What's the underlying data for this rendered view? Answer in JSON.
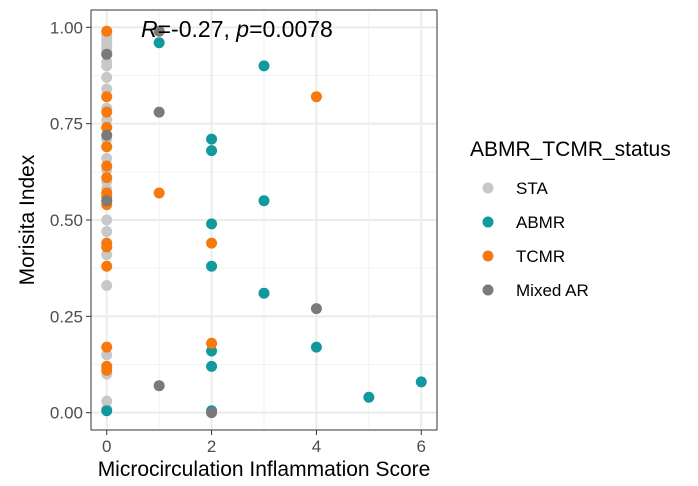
{
  "chart_data": {
    "type": "scatter",
    "xlabel": "Microcirculation Inflammation Score",
    "ylabel": "Morisita Index",
    "xlim": [
      -0.3,
      6.3
    ],
    "ylim": [
      -0.045,
      1.045
    ],
    "x_ticks": [
      "0",
      "2",
      "4",
      "6"
    ],
    "y_ticks": [
      "0.00",
      "0.25",
      "0.50",
      "0.75",
      "1.00"
    ],
    "grid": true,
    "annotation": {
      "r_label": "R",
      "r_value": "=-0.27, ",
      "p_label": "p",
      "p_value": "=0.0078"
    },
    "legend": {
      "title": "ABMR_TCMR_status",
      "position": "right"
    },
    "series": [
      {
        "name": "STA",
        "color": "#C8C8C8",
        "points": [
          [
            0,
            0.98
          ],
          [
            0,
            0.97
          ],
          [
            0,
            0.96
          ],
          [
            0,
            0.95
          ],
          [
            0,
            0.94
          ],
          [
            0,
            0.93
          ],
          [
            0,
            0.91
          ],
          [
            0,
            0.9
          ],
          [
            0,
            0.87
          ],
          [
            0,
            0.84
          ],
          [
            0,
            0.79
          ],
          [
            0,
            0.76
          ],
          [
            0,
            0.74
          ],
          [
            0,
            0.71
          ],
          [
            0,
            0.69
          ],
          [
            0,
            0.66
          ],
          [
            0,
            0.63
          ],
          [
            0,
            0.6
          ],
          [
            0,
            0.58
          ],
          [
            0,
            0.55
          ],
          [
            0,
            0.5
          ],
          [
            0,
            0.47
          ],
          [
            0,
            0.43
          ],
          [
            0,
            0.41
          ],
          [
            0,
            0.33
          ],
          [
            0,
            0.15
          ],
          [
            0,
            0.12
          ],
          [
            0,
            0.1
          ],
          [
            0,
            0.03
          ],
          [
            0,
            0.01
          ],
          [
            2,
            0.0
          ]
        ]
      },
      {
        "name": "ABMR",
        "color": "#12999E",
        "points": [
          [
            0,
            0.005
          ],
          [
            1,
            0.96
          ],
          [
            2,
            0.71
          ],
          [
            2,
            0.68
          ],
          [
            2,
            0.49
          ],
          [
            2,
            0.38
          ],
          [
            2,
            0.16
          ],
          [
            2,
            0.12
          ],
          [
            2,
            0.005
          ],
          [
            3,
            0.9
          ],
          [
            3,
            0.55
          ],
          [
            3,
            0.31
          ],
          [
            4,
            0.17
          ],
          [
            5,
            0.04
          ],
          [
            6,
            0.08
          ]
        ]
      },
      {
        "name": "TCMR",
        "color": "#F7780C",
        "points": [
          [
            0,
            0.99
          ],
          [
            0,
            0.82
          ],
          [
            0,
            0.78
          ],
          [
            0,
            0.74
          ],
          [
            0,
            0.69
          ],
          [
            0,
            0.64
          ],
          [
            0,
            0.61
          ],
          [
            0,
            0.57
          ],
          [
            0,
            0.56
          ],
          [
            0,
            0.54
          ],
          [
            0,
            0.44
          ],
          [
            0,
            0.43
          ],
          [
            0,
            0.38
          ],
          [
            0,
            0.17
          ],
          [
            0,
            0.12
          ],
          [
            0,
            0.11
          ],
          [
            1,
            0.57
          ],
          [
            2,
            0.44
          ],
          [
            2,
            0.18
          ],
          [
            4,
            0.82
          ]
        ]
      },
      {
        "name": "Mixed AR",
        "color": "#7A7A7A",
        "points": [
          [
            0,
            0.93
          ],
          [
            0,
            0.72
          ],
          [
            0,
            0.55
          ],
          [
            1,
            0.99
          ],
          [
            1,
            0.78
          ],
          [
            1,
            0.07
          ],
          [
            2,
            0.0
          ],
          [
            4,
            0.27
          ]
        ]
      }
    ]
  }
}
